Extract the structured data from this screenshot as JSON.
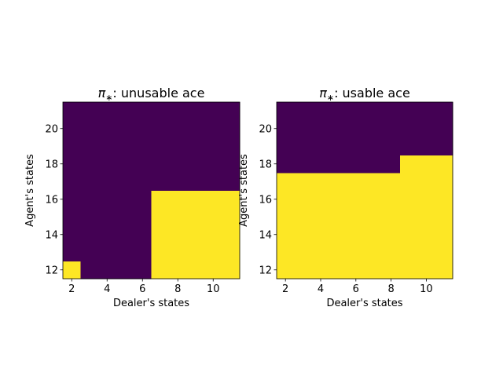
{
  "chart_data": [
    {
      "type": "heatmap",
      "title_symbol": "π",
      "title_sub": "∗",
      "title_rest": ": unusable ace",
      "xlabel": "Dealer's states",
      "ylabel": "Agent's states",
      "x": [
        2,
        3,
        4,
        5,
        6,
        7,
        8,
        9,
        10,
        11
      ],
      "y": [
        12,
        13,
        14,
        15,
        16,
        17,
        18,
        19,
        20,
        21
      ],
      "xlim": [
        1.5,
        11.5
      ],
      "ylim": [
        11.5,
        21.5
      ],
      "xticks": [
        2,
        4,
        6,
        8,
        10
      ],
      "yticks": [
        12,
        14,
        16,
        18,
        20
      ],
      "colormap": {
        "0": "#440154",
        "1": "#fde725"
      },
      "z": [
        [
          1,
          0,
          0,
          0,
          0,
          1,
          1,
          1,
          1,
          1
        ],
        [
          0,
          0,
          0,
          0,
          0,
          1,
          1,
          1,
          1,
          1
        ],
        [
          0,
          0,
          0,
          0,
          0,
          1,
          1,
          1,
          1,
          1
        ],
        [
          0,
          0,
          0,
          0,
          0,
          1,
          1,
          1,
          1,
          1
        ],
        [
          0,
          0,
          0,
          0,
          0,
          1,
          1,
          1,
          1,
          1
        ],
        [
          0,
          0,
          0,
          0,
          0,
          0,
          0,
          0,
          0,
          0
        ],
        [
          0,
          0,
          0,
          0,
          0,
          0,
          0,
          0,
          0,
          0
        ],
        [
          0,
          0,
          0,
          0,
          0,
          0,
          0,
          0,
          0,
          0
        ],
        [
          0,
          0,
          0,
          0,
          0,
          0,
          0,
          0,
          0,
          0
        ],
        [
          0,
          0,
          0,
          0,
          0,
          0,
          0,
          0,
          0,
          0
        ]
      ]
    },
    {
      "type": "heatmap",
      "title_symbol": "π",
      "title_sub": "∗",
      "title_rest": ": usable ace",
      "xlabel": "Dealer's states",
      "ylabel": "Agent's states",
      "x": [
        2,
        3,
        4,
        5,
        6,
        7,
        8,
        9,
        10,
        11
      ],
      "y": [
        12,
        13,
        14,
        15,
        16,
        17,
        18,
        19,
        20,
        21
      ],
      "xlim": [
        1.5,
        11.5
      ],
      "ylim": [
        11.5,
        21.5
      ],
      "xticks": [
        2,
        4,
        6,
        8,
        10
      ],
      "yticks": [
        12,
        14,
        16,
        18,
        20
      ],
      "colormap": {
        "0": "#440154",
        "1": "#fde725"
      },
      "z": [
        [
          1,
          1,
          1,
          1,
          1,
          1,
          1,
          1,
          1,
          1
        ],
        [
          1,
          1,
          1,
          1,
          1,
          1,
          1,
          1,
          1,
          1
        ],
        [
          1,
          1,
          1,
          1,
          1,
          1,
          1,
          1,
          1,
          1
        ],
        [
          1,
          1,
          1,
          1,
          1,
          1,
          1,
          1,
          1,
          1
        ],
        [
          1,
          1,
          1,
          1,
          1,
          1,
          1,
          1,
          1,
          1
        ],
        [
          1,
          1,
          1,
          1,
          1,
          1,
          1,
          1,
          1,
          1
        ],
        [
          0,
          0,
          0,
          0,
          0,
          0,
          0,
          1,
          1,
          1
        ],
        [
          0,
          0,
          0,
          0,
          0,
          0,
          0,
          0,
          0,
          0
        ],
        [
          0,
          0,
          0,
          0,
          0,
          0,
          0,
          0,
          0,
          0
        ],
        [
          0,
          0,
          0,
          0,
          0,
          0,
          0,
          0,
          0,
          0
        ]
      ]
    }
  ]
}
